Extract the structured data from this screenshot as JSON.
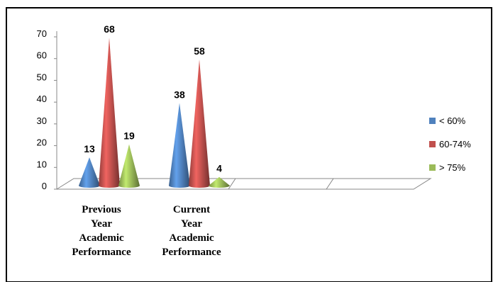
{
  "chart_data": {
    "type": "bar",
    "style": "3d-cone",
    "categories": [
      [
        "Previous",
        "Year",
        "Academic",
        "Performance"
      ],
      [
        "Current",
        "Year",
        "Academic",
        "Performance"
      ]
    ],
    "series": [
      {
        "name": "< 60%",
        "color": "#4F81BD",
        "values": [
          13,
          38
        ]
      },
      {
        "name": "60-74%",
        "color": "#C0504D",
        "values": [
          68,
          58
        ]
      },
      {
        "name": "> 75%",
        "color": "#9BBB59",
        "values": [
          19,
          4
        ]
      }
    ],
    "yticks": [
      "0",
      "10",
      "20",
      "30",
      "40",
      "50",
      "60",
      "70"
    ],
    "ylim": [
      0,
      70
    ],
    "legend_position": "right",
    "grid": false
  }
}
